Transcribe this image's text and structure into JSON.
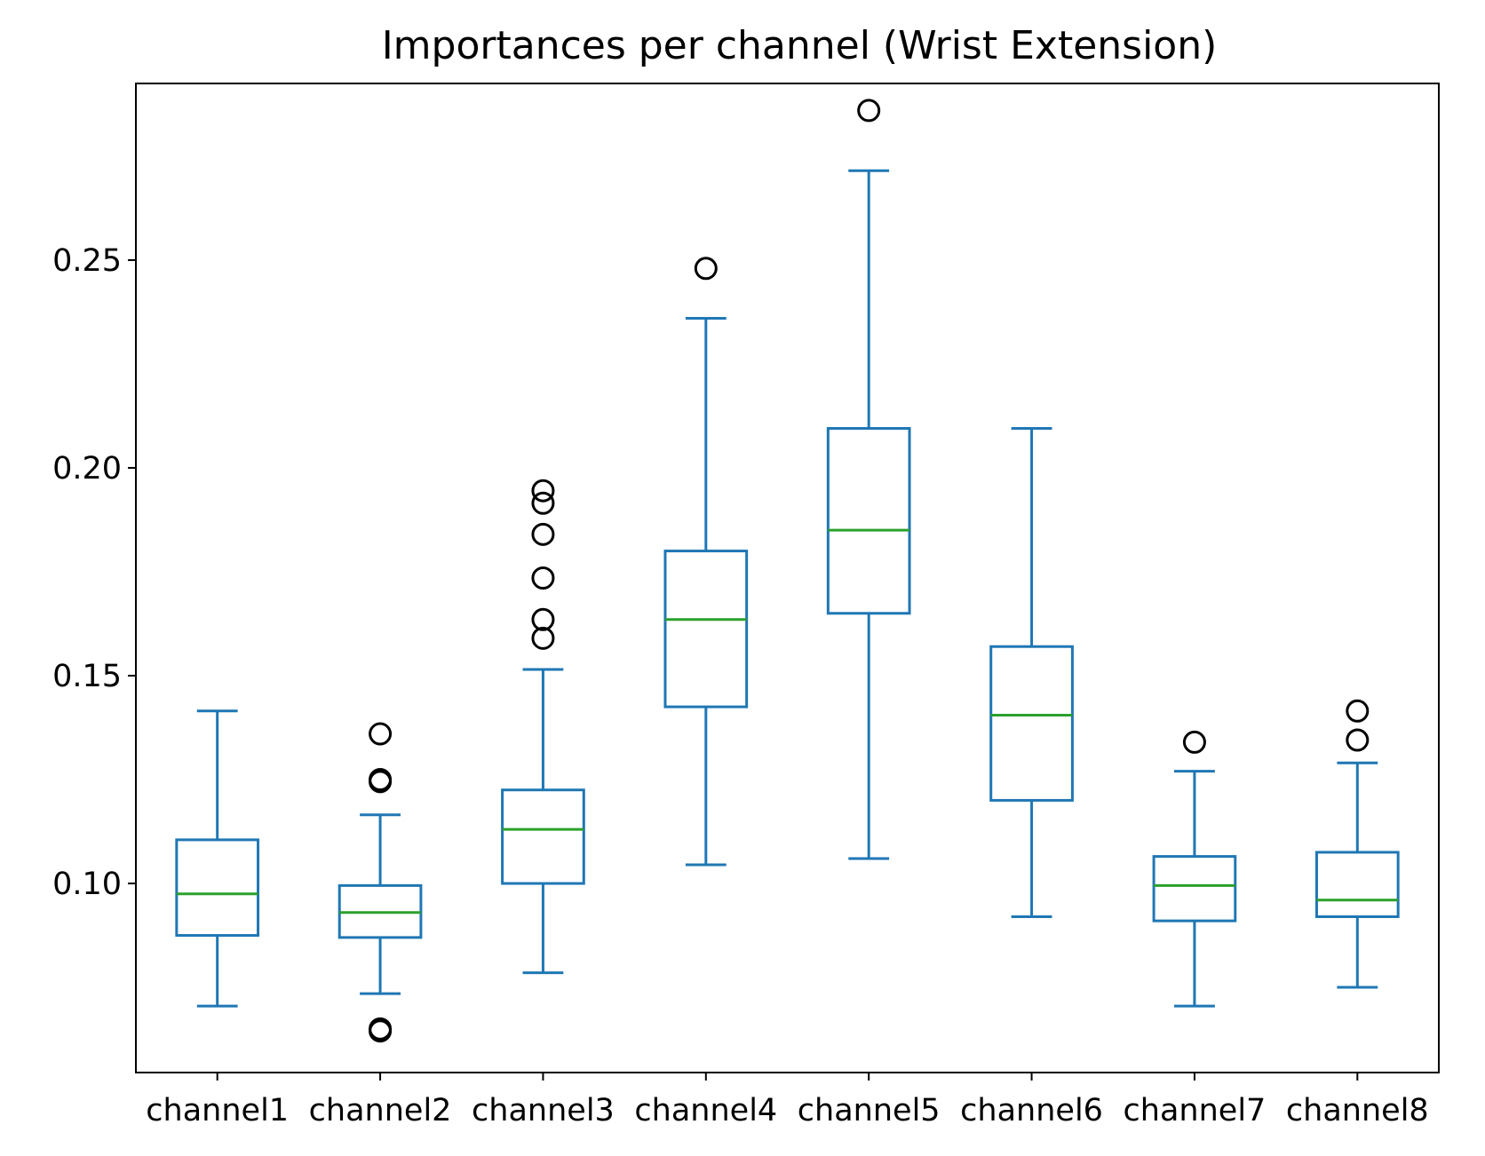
{
  "chart_data": {
    "type": "box",
    "title": "Importances per channel (Wrist Extension)",
    "xlabel": "",
    "ylabel": "",
    "ylim": [
      0.0545,
      0.2925
    ],
    "yticks": [
      0.1,
      0.15,
      0.2,
      0.25
    ],
    "ytick_labels": [
      "0.10",
      "0.15",
      "0.20",
      "0.25"
    ],
    "grid": false,
    "legend": "none",
    "colors": {
      "box": "#1f77b4",
      "median": "#2ca02c",
      "flier": "#000000"
    },
    "categories": [
      "channel1",
      "channel2",
      "channel3",
      "channel4",
      "channel5",
      "channel6",
      "channel7",
      "channel8"
    ],
    "boxes": [
      {
        "whislo": 0.0705,
        "q1": 0.0875,
        "med": 0.0975,
        "q3": 0.1105,
        "whishi": 0.1415,
        "fliers": []
      },
      {
        "whislo": 0.0735,
        "q1": 0.087,
        "med": 0.093,
        "q3": 0.0995,
        "whishi": 0.1165,
        "fliers": [
          0.136,
          0.125,
          0.1245,
          0.065,
          0.0645
        ]
      },
      {
        "whislo": 0.0785,
        "q1": 0.1,
        "med": 0.113,
        "q3": 0.1225,
        "whishi": 0.1515,
        "fliers": [
          0.1945,
          0.1915,
          0.184,
          0.1735,
          0.1635,
          0.159
        ]
      },
      {
        "whislo": 0.1045,
        "q1": 0.1425,
        "med": 0.1635,
        "q3": 0.18,
        "whishi": 0.236,
        "fliers": [
          0.248
        ]
      },
      {
        "whislo": 0.106,
        "q1": 0.165,
        "med": 0.185,
        "q3": 0.2095,
        "whishi": 0.2715,
        "fliers": [
          0.286
        ]
      },
      {
        "whislo": 0.092,
        "q1": 0.12,
        "med": 0.1405,
        "q3": 0.157,
        "whishi": 0.2095,
        "fliers": []
      },
      {
        "whislo": 0.0705,
        "q1": 0.091,
        "med": 0.0995,
        "q3": 0.1065,
        "whishi": 0.127,
        "fliers": [
          0.134
        ]
      },
      {
        "whislo": 0.075,
        "q1": 0.092,
        "med": 0.096,
        "q3": 0.1075,
        "whishi": 0.129,
        "fliers": [
          0.1415,
          0.1345
        ]
      }
    ]
  }
}
